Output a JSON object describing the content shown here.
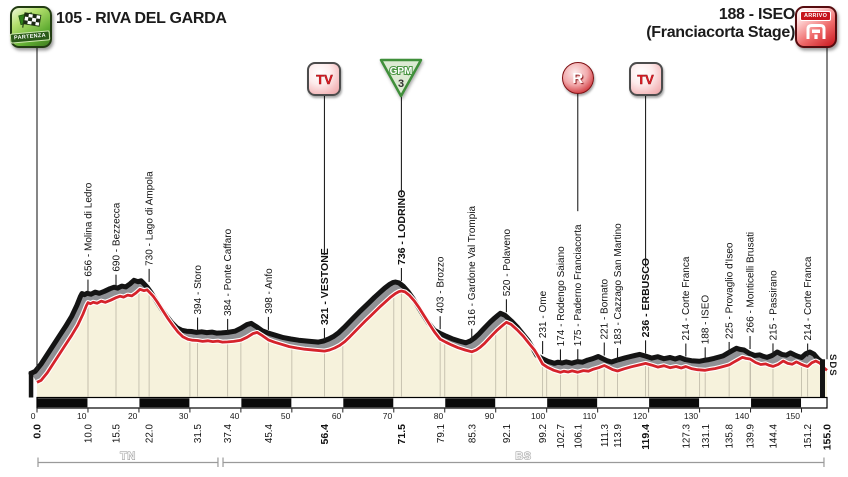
{
  "header": {
    "start_title": "105 - RIVA DEL GARDA",
    "start_icon_label": "PARTENZA",
    "finish_title": "188 - ISEO",
    "finish_subtitle": "(Franciacorta Stage)",
    "finish_icon_label": "ARRIVO"
  },
  "credit": "SDS",
  "chart_data": {
    "type": "area",
    "title": "Stage elevation profile: Riva del Garda to Iseo (Franciacorta Stage)",
    "x_unit": "km",
    "y_unit": "m",
    "x_range": [
      0,
      155
    ],
    "y_range": [
      0,
      800
    ],
    "grid": "vertical lines every 10 km",
    "legend_position": "none",
    "colors": {
      "fill": "#f6f2dc",
      "band": "#8f9094",
      "line": "#d5232b",
      "outline": "#141414",
      "grid": "#c3beac"
    },
    "ruler_ticks_km": [
      0,
      10,
      20,
      30,
      40,
      50,
      60,
      70,
      80,
      90,
      100,
      110,
      120,
      130,
      140,
      150
    ],
    "regions": [
      {
        "label": "TN",
        "from_km": 0,
        "to_km": 35.7
      },
      {
        "label": "BS",
        "from_km": 36.3,
        "to_km": 154.6
      }
    ],
    "icons": [
      {
        "id": "tv-1",
        "kind": "intermediate-sprint-tv",
        "label": "TV",
        "km": 56.4
      },
      {
        "id": "gpm-1",
        "kind": "gpm-category-3",
        "label": "GPM",
        "category": "3",
        "km": 71.5
      },
      {
        "id": "feed-1",
        "kind": "feed-zone",
        "label": "R",
        "km": 106.1
      },
      {
        "id": "tv-2",
        "kind": "intermediate-sprint-tv",
        "label": "TV",
        "km": 119.4
      }
    ],
    "waypoints": [
      {
        "km": 0,
        "elev": 105,
        "label": null,
        "km_label": "0.0",
        "bold": true
      },
      {
        "km": 10,
        "elev": 656,
        "label": "656 - Molina di Ledro",
        "km_label": "10.0",
        "bold": false
      },
      {
        "km": 15.5,
        "elev": 690,
        "label": "690 - Bezzecca",
        "km_label": "15.5",
        "bold": false
      },
      {
        "km": 22,
        "elev": 730,
        "label": "730 - Lago di Ampola",
        "km_label": "22.0",
        "bold": false
      },
      {
        "km": 31.5,
        "elev": 394,
        "label": "394 - Storo",
        "km_label": "31.5",
        "bold": false
      },
      {
        "km": 37.4,
        "elev": 384,
        "label": "384 - Ponte Caffaro",
        "km_label": "37.4",
        "bold": false
      },
      {
        "km": 45.4,
        "elev": 398,
        "label": "398 - Anfo",
        "km_label": "45.4",
        "bold": false
      },
      {
        "km": 56.4,
        "elev": 321,
        "label": "321 - VESTONE",
        "km_label": "56.4",
        "bold": true
      },
      {
        "km": 71.5,
        "elev": 736,
        "label": "736 - LODRINO",
        "km_label": "71.5",
        "bold": true
      },
      {
        "km": 79.1,
        "elev": 403,
        "label": "403 - Brozzo",
        "km_label": "79.1",
        "bold": false
      },
      {
        "km": 85.3,
        "elev": 316,
        "label": "316 - Gardone Val Trompia",
        "km_label": "85.3",
        "bold": false
      },
      {
        "km": 92.1,
        "elev": 520,
        "label": "520 - Polaveno",
        "km_label": "92.1",
        "bold": false
      },
      {
        "km": 99.2,
        "elev": 231,
        "label": "231 - Ome",
        "km_label": "99.2",
        "bold": false
      },
      {
        "km": 102.7,
        "elev": 174,
        "label": "174 - Rodengo Saiano",
        "km_label": "102.7",
        "bold": false
      },
      {
        "km": 106.1,
        "elev": 175,
        "label": "175 - Paderno Franciacorta",
        "km_label": "106.1",
        "bold": false
      },
      {
        "km": 111.3,
        "elev": 221,
        "label": "221 - Bornato",
        "km_label": "111.3",
        "bold": false
      },
      {
        "km": 113.9,
        "elev": 183,
        "label": "183 - Cazzago San Martino",
        "km_label": "113.9",
        "bold": false
      },
      {
        "km": 119.4,
        "elev": 236,
        "label": "236 - ERBUSCO",
        "km_label": "119.4",
        "bold": true
      },
      {
        "km": 127.3,
        "elev": 214,
        "label": "214 - Corte Franca",
        "km_label": "127.3",
        "bold": false
      },
      {
        "km": 131.1,
        "elev": 188,
        "label": "188 - ISEO",
        "km_label": "131.1",
        "bold": false
      },
      {
        "km": 135.8,
        "elev": 225,
        "label": "225 - Provaglio d'Iseo",
        "km_label": "135.8",
        "bold": false
      },
      {
        "km": 139.9,
        "elev": 266,
        "label": "266 - Monticelli Brusati",
        "km_label": "139.9",
        "bold": false
      },
      {
        "km": 144.4,
        "elev": 215,
        "label": "215 - Passirano",
        "km_label": "144.4",
        "bold": false
      },
      {
        "km": 151.2,
        "elev": 214,
        "label": "214 - Corte Franca",
        "km_label": "151.2",
        "bold": false
      },
      {
        "km": 155,
        "elev": 188,
        "label": null,
        "km_label": "155.0",
        "bold": true
      }
    ],
    "profile": [
      [
        0,
        105
      ],
      [
        0.8,
        118
      ],
      [
        2,
        170
      ],
      [
        3.2,
        235
      ],
      [
        4.4,
        300
      ],
      [
        5.6,
        365
      ],
      [
        6.8,
        430
      ],
      [
        8,
        500
      ],
      [
        9,
        575
      ],
      [
        9.7,
        635
      ],
      [
        10,
        656
      ],
      [
        10.5,
        648
      ],
      [
        11,
        658
      ],
      [
        11.8,
        652
      ],
      [
        12.6,
        666
      ],
      [
        13.4,
        658
      ],
      [
        14.4,
        672
      ],
      [
        15.5,
        690
      ],
      [
        16.3,
        700
      ],
      [
        17,
        694
      ],
      [
        17.8,
        708
      ],
      [
        18.6,
        702
      ],
      [
        19.4,
        722
      ],
      [
        20.2,
        748
      ],
      [
        21,
        738
      ],
      [
        21.6,
        744
      ],
      [
        22,
        730
      ],
      [
        22.8,
        700
      ],
      [
        23.6,
        660
      ],
      [
        24.6,
        605
      ],
      [
        25.6,
        550
      ],
      [
        26.6,
        500
      ],
      [
        27.6,
        455
      ],
      [
        28.6,
        420
      ],
      [
        29.6,
        402
      ],
      [
        30.5,
        396
      ],
      [
        31.5,
        394
      ],
      [
        32.5,
        388
      ],
      [
        33.5,
        392
      ],
      [
        34.5,
        386
      ],
      [
        35.5,
        390
      ],
      [
        36.4,
        383
      ],
      [
        37.4,
        384
      ],
      [
        38.6,
        388
      ],
      [
        40,
        396
      ],
      [
        41.2,
        416
      ],
      [
        42.4,
        442
      ],
      [
        43.2,
        450
      ],
      [
        44.2,
        428
      ],
      [
        45.4,
        398
      ],
      [
        46.6,
        382
      ],
      [
        48,
        368
      ],
      [
        49.5,
        352
      ],
      [
        51,
        342
      ],
      [
        52.5,
        334
      ],
      [
        54.5,
        327
      ],
      [
        56.4,
        321
      ],
      [
        57.4,
        328
      ],
      [
        58.4,
        342
      ],
      [
        59.4,
        360
      ],
      [
        60.4,
        386
      ],
      [
        61.4,
        420
      ],
      [
        62.4,
        456
      ],
      [
        63.4,
        492
      ],
      [
        64.4,
        528
      ],
      [
        65.4,
        562
      ],
      [
        66.4,
        596
      ],
      [
        67.4,
        630
      ],
      [
        68.4,
        662
      ],
      [
        69.4,
        694
      ],
      [
        70.3,
        718
      ],
      [
        71,
        732
      ],
      [
        71.5,
        736
      ],
      [
        72.2,
        730
      ],
      [
        73,
        708
      ],
      [
        74,
        668
      ],
      [
        75,
        618
      ],
      [
        76,
        562
      ],
      [
        77,
        506
      ],
      [
        78,
        452
      ],
      [
        79.1,
        403
      ],
      [
        80.2,
        382
      ],
      [
        81.4,
        362
      ],
      [
        82.6,
        344
      ],
      [
        84,
        328
      ],
      [
        85.3,
        316
      ],
      [
        86.2,
        328
      ],
      [
        87,
        348
      ],
      [
        87.8,
        374
      ],
      [
        88.6,
        404
      ],
      [
        89.4,
        434
      ],
      [
        90.2,
        462
      ],
      [
        91,
        488
      ],
      [
        91.6,
        506
      ],
      [
        92.1,
        520
      ],
      [
        93,
        506
      ],
      [
        94.2,
        468
      ],
      [
        95.4,
        424
      ],
      [
        96.5,
        376
      ],
      [
        97.6,
        328
      ],
      [
        98.4,
        282
      ],
      [
        99.2,
        231
      ],
      [
        100.2,
        208
      ],
      [
        101.4,
        188
      ],
      [
        102.7,
        174
      ],
      [
        103.4,
        182
      ],
      [
        104.2,
        176
      ],
      [
        105,
        184
      ],
      [
        106.1,
        175
      ],
      [
        107.2,
        186
      ],
      [
        108.2,
        182
      ],
      [
        109.2,
        196
      ],
      [
        110.2,
        206
      ],
      [
        111.3,
        221
      ],
      [
        112.2,
        206
      ],
      [
        113,
        192
      ],
      [
        113.9,
        183
      ],
      [
        115.2,
        198
      ],
      [
        116.6,
        212
      ],
      [
        118,
        224
      ],
      [
        119.4,
        236
      ],
      [
        120.6,
        224
      ],
      [
        121.8,
        210
      ],
      [
        123,
        220
      ],
      [
        124.2,
        206
      ],
      [
        125.4,
        214
      ],
      [
        126.4,
        204
      ],
      [
        127.3,
        214
      ],
      [
        128.4,
        200
      ],
      [
        129.6,
        192
      ],
      [
        131.1,
        188
      ],
      [
        132,
        194
      ],
      [
        133,
        200
      ],
      [
        134,
        208
      ],
      [
        135,
        218
      ],
      [
        135.8,
        225
      ],
      [
        136.7,
        244
      ],
      [
        137.6,
        262
      ],
      [
        138.4,
        278
      ],
      [
        139.1,
        270
      ],
      [
        139.9,
        266
      ],
      [
        141,
        242
      ],
      [
        142,
        228
      ],
      [
        143,
        232
      ],
      [
        143.7,
        222
      ],
      [
        144.4,
        215
      ],
      [
        145.4,
        228
      ],
      [
        146.4,
        252
      ],
      [
        147.3,
        236
      ],
      [
        148.2,
        230
      ],
      [
        149,
        246
      ],
      [
        149.8,
        232
      ],
      [
        150.5,
        222
      ],
      [
        151.2,
        214
      ],
      [
        152,
        240
      ],
      [
        152.8,
        252
      ],
      [
        153.6,
        238
      ],
      [
        154.4,
        205
      ],
      [
        155,
        188
      ]
    ]
  }
}
